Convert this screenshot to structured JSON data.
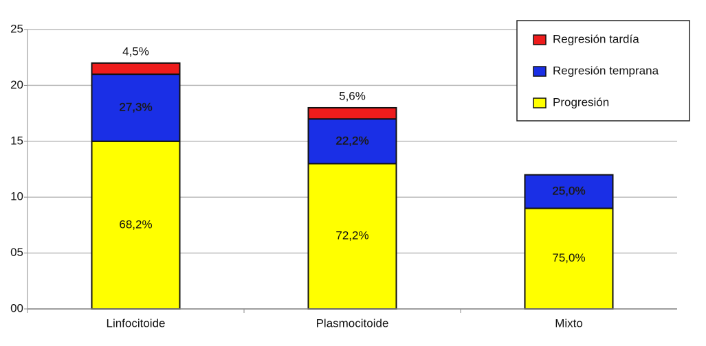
{
  "chart_data": {
    "type": "stacked_bar",
    "categories": [
      "Linfocitoide",
      "Plasmocitoide",
      "Mixto"
    ],
    "series": [
      {
        "name": "Progresión",
        "color": "#ffff00",
        "values": [
          15,
          13,
          9
        ],
        "value_labels": [
          "68,2%",
          "72,2%",
          "75,0%"
        ]
      },
      {
        "name": "Regresión temprana",
        "color": "#1a2fe6",
        "values": [
          6,
          4,
          3
        ],
        "value_labels": [
          "27,3%",
          "22,2%",
          "25,0%"
        ]
      },
      {
        "name": "Regresión tardía",
        "color": "#ee1c1c",
        "values": [
          1,
          1,
          0
        ],
        "value_labels": [
          "4,5%",
          "5,6%",
          null
        ]
      }
    ],
    "ylim": [
      0,
      25
    ],
    "yticks": [
      {
        "value": 0,
        "label": "00"
      },
      {
        "value": 5,
        "label": "05"
      },
      10,
      15,
      20,
      25
    ],
    "grid": true,
    "legend": "upper right"
  }
}
